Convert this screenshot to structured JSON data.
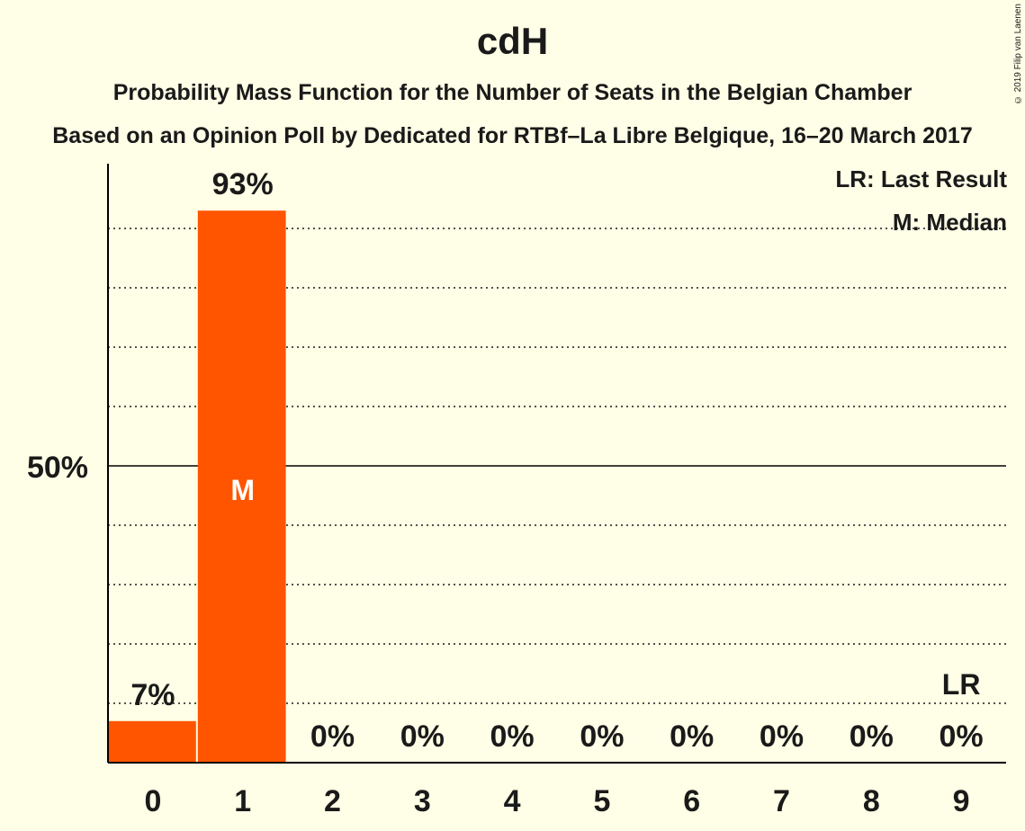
{
  "title": "cdH",
  "subtitle1": "Probability Mass Function for the Number of Seats in the Belgian Chamber",
  "subtitle2": "Based on an Opinion Poll by Dedicated for RTBf–La Libre Belgique, 16–20 March 2017",
  "copyright": "© 2019 Filip van Laenen",
  "legend": {
    "last_result": "LR: Last Result",
    "median": "M: Median"
  },
  "colors": {
    "bar": "#FF5500",
    "background": "#FFFEE6",
    "axis": "#000000"
  },
  "chart_data": {
    "type": "bar",
    "categories": [
      "0",
      "1",
      "2",
      "3",
      "4",
      "5",
      "6",
      "7",
      "8",
      "9"
    ],
    "values": [
      7,
      93,
      0,
      0,
      0,
      0,
      0,
      0,
      0,
      0
    ],
    "value_labels": [
      "7%",
      "93%",
      "0%",
      "0%",
      "0%",
      "0%",
      "0%",
      "0%",
      "0%",
      "0%"
    ],
    "ylim": [
      0,
      100
    ],
    "y_ticks": [
      {
        "value": 50,
        "label": "50%"
      }
    ],
    "grid": "dotted every 10%",
    "median_index": 1,
    "median_label": "M",
    "last_result_index": 9,
    "last_result_label": "LR",
    "title": "cdH",
    "xlabel": "",
    "ylabel": ""
  }
}
